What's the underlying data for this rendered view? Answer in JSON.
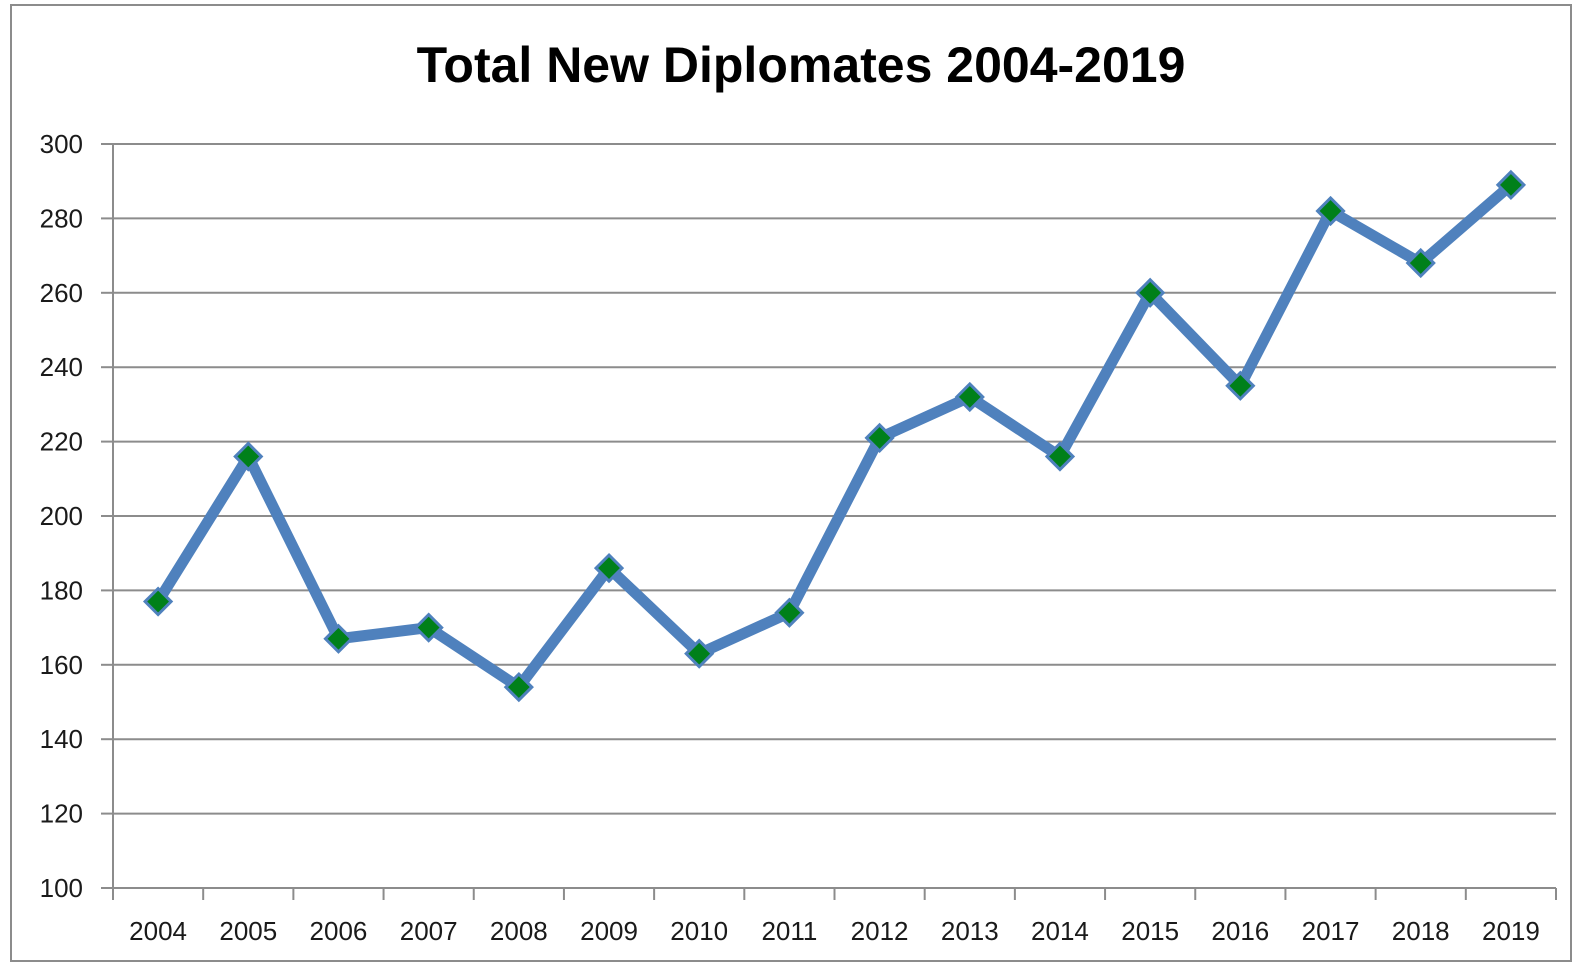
{
  "chart_data": {
    "type": "line",
    "title": "Total New Diplomates 2004-2019",
    "xlabel": "",
    "ylabel": "",
    "categories": [
      "2004",
      "2005",
      "2006",
      "2007",
      "2008",
      "2009",
      "2010",
      "2011",
      "2012",
      "2013",
      "2014",
      "2015",
      "2016",
      "2017",
      "2018",
      "2019"
    ],
    "series": [
      {
        "values": [
          177,
          216,
          167,
          170,
          154,
          186,
          163,
          174,
          221,
          232,
          216,
          260,
          235,
          282,
          268,
          289
        ]
      }
    ],
    "ylim": [
      100,
      300
    ],
    "yticks": [
      100,
      120,
      140,
      160,
      180,
      200,
      220,
      240,
      260,
      280,
      300
    ],
    "grid": true,
    "legend": "none",
    "colors": {
      "line": "#4f81bd",
      "marker_fill": "#00801a",
      "marker_edge": "#4f81bd",
      "grid": "#8c8c8c",
      "axis": "#8c8c8c"
    }
  }
}
